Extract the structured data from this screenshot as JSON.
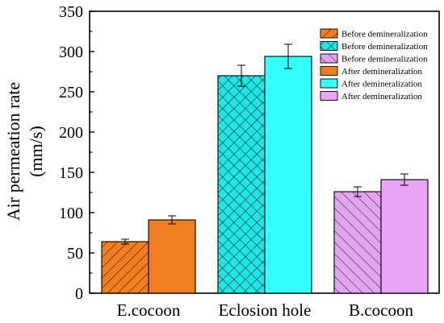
{
  "chart_data": {
    "type": "bar",
    "categories": [
      "E.cocoon",
      "Eclosion hole",
      "B.cocoon"
    ],
    "ylabel_line1": "Air permeation rate",
    "ylabel_line2": "(mm/s)",
    "xlabel": "",
    "ylim": [
      0,
      350
    ],
    "yticks": [
      0,
      50,
      100,
      150,
      200,
      250,
      300,
      350
    ],
    "grid": false,
    "legend_position": "top-right",
    "series": [
      {
        "name": "Before demineralization",
        "pattern": "diagonal-hatch",
        "color": "#f07f22",
        "values": [
          {
            "group": 0,
            "value": 64,
            "error": 3
          }
        ]
      },
      {
        "name": "Before demineralization",
        "pattern": "cross-hatch",
        "color": "#22e5e5",
        "values": [
          {
            "group": 1,
            "value": 270,
            "error": 13
          }
        ]
      },
      {
        "name": "Before demineralization",
        "pattern": "diagonal-hatch",
        "color": "#d98ad9",
        "values": [
          {
            "group": 2,
            "value": 126,
            "error": 6
          }
        ]
      },
      {
        "name": "After demineralization",
        "pattern": "solid",
        "color": "#f07f22",
        "values": [
          {
            "group": 0,
            "value": 91,
            "error": 5
          }
        ]
      },
      {
        "name": "After demineralization",
        "pattern": "solid",
        "color": "#33ffff",
        "values": [
          {
            "group": 1,
            "value": 294,
            "error": 15
          }
        ]
      },
      {
        "name": "After demineralization",
        "pattern": "solid",
        "color": "#e9a5f5",
        "values": [
          {
            "group": 2,
            "value": 141,
            "error": 7
          }
        ]
      }
    ]
  }
}
